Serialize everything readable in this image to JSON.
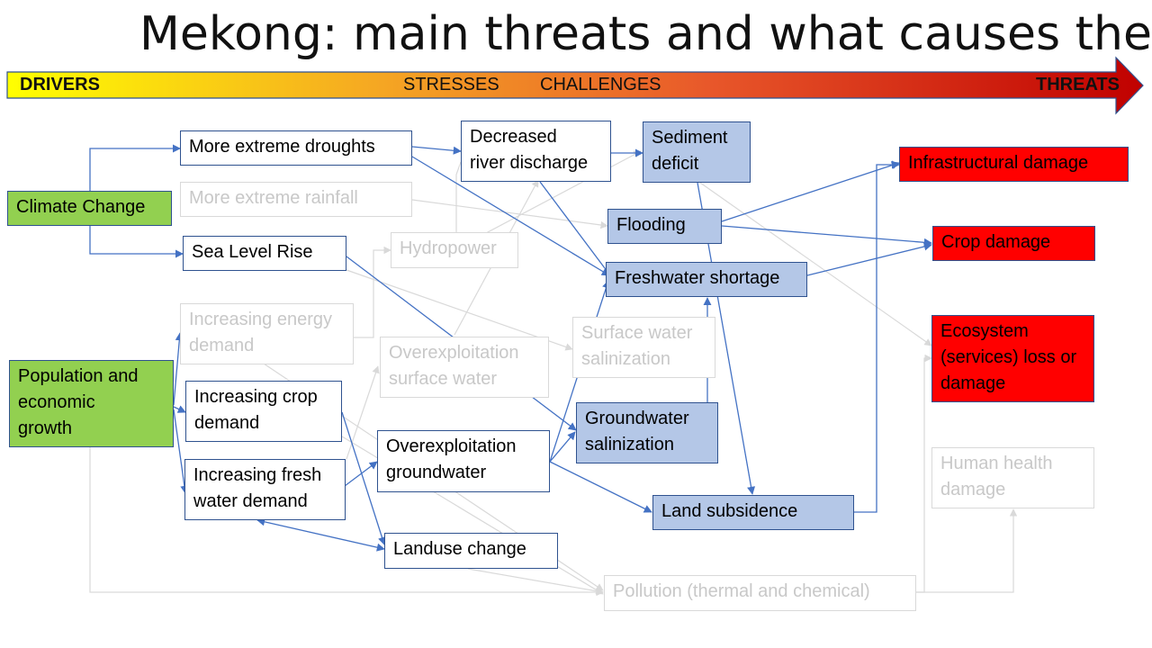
{
  "title": "Mekong: main threats and what causes them",
  "banner": {
    "drivers": "DRIVERS",
    "stresses": "STRESSES",
    "challenges": "CHALLENGES",
    "threats": "THREATS",
    "gradient_colors": [
      "#ffff00",
      "#f5a623",
      "#e8572a",
      "#c00000"
    ]
  },
  "nodes": {
    "climate_change": [
      "Climate Change"
    ],
    "population_growth": [
      "Population and",
      "economic",
      "growth"
    ],
    "droughts": [
      "More extreme droughts"
    ],
    "rainfall": [
      "More extreme rainfall"
    ],
    "sea_level_rise": [
      "Sea Level Rise"
    ],
    "energy_demand": [
      "Increasing energy",
      "demand"
    ],
    "crop_demand": [
      "Increasing crop",
      "demand"
    ],
    "fresh_water_demand": [
      "Increasing fresh",
      "water demand"
    ],
    "hydropower": [
      "Hydropower"
    ],
    "over_surface": [
      "Overexploitation",
      "surface water"
    ],
    "over_ground": [
      "Overexploitation",
      "groundwater"
    ],
    "landuse": [
      "Landuse change"
    ],
    "pollution": [
      "Pollution (thermal and chemical)"
    ],
    "river_discharge": [
      "Decreased",
      "river discharge"
    ],
    "sediment": [
      "Sediment",
      "deficit"
    ],
    "flooding": [
      "Flooding"
    ],
    "freshwater_shortage": [
      "Freshwater shortage"
    ],
    "surface_salinization": [
      "Surface water",
      "salinization"
    ],
    "groundwater_salinization": [
      "Groundwater",
      "salinization"
    ],
    "land_subsidence": [
      "Land subsidence"
    ],
    "infrastructural": [
      "Infrastructural damage"
    ],
    "crop_damage": [
      "Crop damage"
    ],
    "ecosystem": [
      "Ecosystem",
      "(services)  loss or",
      "damage"
    ],
    "human_health": [
      "Human health",
      "damage"
    ]
  },
  "colors": {
    "driver_fill": "#92d050",
    "threat_fill": "#ff0000",
    "challenge_fill": "#b4c7e7",
    "active_edge": "#4472c4",
    "faded_edge": "#d9d9d9",
    "faded_text": "#c8c8c8",
    "box_border": "#2f528f"
  }
}
